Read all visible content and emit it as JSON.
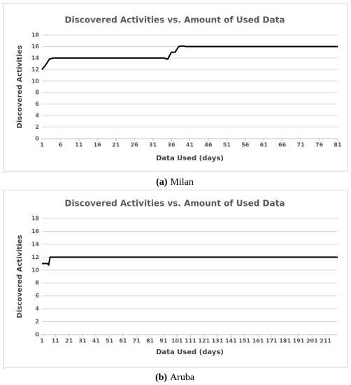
{
  "chart_data": [
    {
      "type": "line",
      "title": "Discovered Activities vs. Amount of Used Data",
      "xlabel": "Data Used (days)",
      "ylabel": "Discovered Activities",
      "caption_label": "(a)",
      "caption_text": "Milan",
      "x": [
        1,
        2,
        3,
        4,
        33,
        34,
        35,
        36,
        37,
        38,
        39,
        40,
        81
      ],
      "values": [
        12,
        12.8,
        13.8,
        14,
        14,
        14,
        13.8,
        15,
        15,
        16,
        16.1,
        16,
        16
      ],
      "color": "#000000",
      "xlim": [
        1,
        81
      ],
      "xticks": [
        1,
        6,
        11,
        16,
        21,
        26,
        31,
        36,
        41,
        46,
        51,
        56,
        61,
        66,
        71,
        76,
        81
      ],
      "ylim": [
        0,
        18
      ],
      "yticks": [
        0,
        2,
        4,
        6,
        8,
        10,
        12,
        14,
        16,
        18
      ],
      "grid": true
    },
    {
      "type": "line",
      "title": "Discovered Activities vs. Amount of Used Data",
      "xlabel": "Data Used (days)",
      "ylabel": "Discovered Activities",
      "caption_label": "(b)",
      "caption_text": "Aruba",
      "x": [
        1,
        5,
        6,
        7,
        220
      ],
      "values": [
        11,
        11,
        10.8,
        12,
        12
      ],
      "color": "#000000",
      "xlim": [
        1,
        220
      ],
      "xticks": [
        1,
        11,
        21,
        31,
        41,
        51,
        61,
        71,
        81,
        91,
        101,
        111,
        121,
        131,
        141,
        151,
        161,
        171,
        181,
        191,
        201,
        211
      ],
      "ylim": [
        0,
        18
      ],
      "yticks": [
        0,
        2,
        4,
        6,
        8,
        10,
        12,
        14,
        16,
        18
      ],
      "grid": true
    }
  ]
}
